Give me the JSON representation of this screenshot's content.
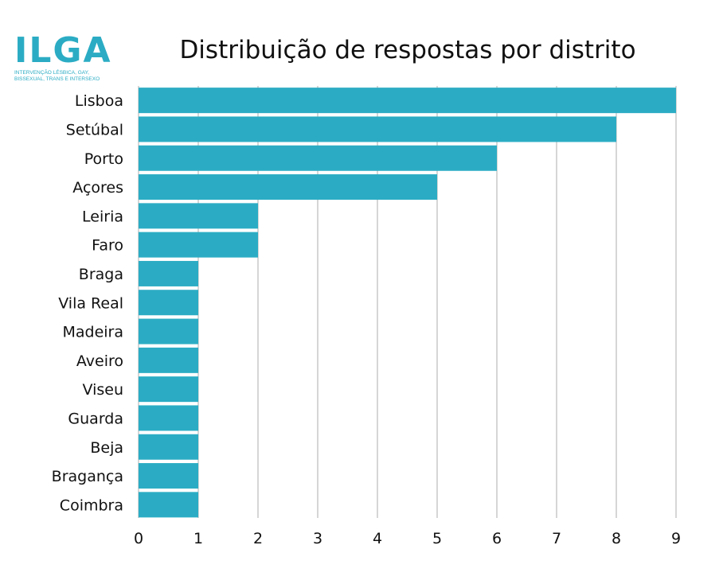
{
  "logo": {
    "mark": "ILGA",
    "tagline": "Intervenção Lésbica, Gay, Bissexual, Trans e Intersexo"
  },
  "colors": {
    "bar": "#2bacc4",
    "grid": "#c8c8c8",
    "text": "#111111"
  },
  "chart_data": {
    "type": "bar",
    "orientation": "horizontal",
    "title": "Distribuição de respostas por distrito",
    "xlabel": "",
    "ylabel": "",
    "categories": [
      "Lisboa",
      "Setúbal",
      "Porto",
      "Açores",
      "Leiria",
      "Faro",
      "Braga",
      "Vila Real",
      "Madeira",
      "Aveiro",
      "Viseu",
      "Guarda",
      "Beja",
      "Bragança",
      "Coimbra"
    ],
    "values": [
      9,
      8,
      6,
      5,
      2,
      2,
      1,
      1,
      1,
      1,
      1,
      1,
      1,
      1,
      1
    ],
    "xlim": [
      0,
      9
    ],
    "xticks": [
      "0",
      "1",
      "2",
      "3",
      "4",
      "5",
      "6",
      "7",
      "8",
      "9"
    ],
    "grid": true,
    "legend": "none"
  }
}
